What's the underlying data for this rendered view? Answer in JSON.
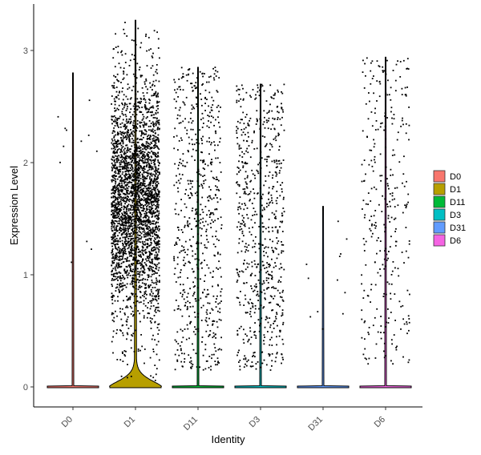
{
  "chart_data": {
    "type": "violin",
    "xlabel": "Identity",
    "ylabel": "Expression Level",
    "ylim": [
      -0.18,
      3.35
    ],
    "yticks": [
      0,
      1,
      2,
      3
    ],
    "categories": [
      "D0",
      "D1",
      "D11",
      "D3",
      "D31",
      "D6"
    ],
    "colors": {
      "D0": "#F8766D",
      "D1": "#B79F00",
      "D11": "#00BA38",
      "D3": "#00BFC4",
      "D31": "#619CFF",
      "D6": "#F564E3"
    },
    "violin_max": {
      "D0": 2.8,
      "D1": 3.27,
      "D11": 2.85,
      "D3": 2.7,
      "D31": 1.61,
      "D6": 2.94
    },
    "jitter": {
      "D0": {
        "n": 12,
        "range": [
          0.9,
          2.8
        ]
      },
      "D1": {
        "n": 3000,
        "range": [
          0.05,
          3.27
        ]
      },
      "D11": {
        "n": 650,
        "range": [
          0.15,
          2.85
        ]
      },
      "D3": {
        "n": 700,
        "range": [
          0.15,
          2.7
        ]
      },
      "D31": {
        "n": 12,
        "range": [
          0.2,
          1.61
        ]
      },
      "D6": {
        "n": 320,
        "range": [
          0.2,
          2.94
        ]
      }
    },
    "legend": {
      "position": "right",
      "entries": [
        "D0",
        "D1",
        "D11",
        "D3",
        "D31",
        "D6"
      ]
    },
    "grid": false
  }
}
